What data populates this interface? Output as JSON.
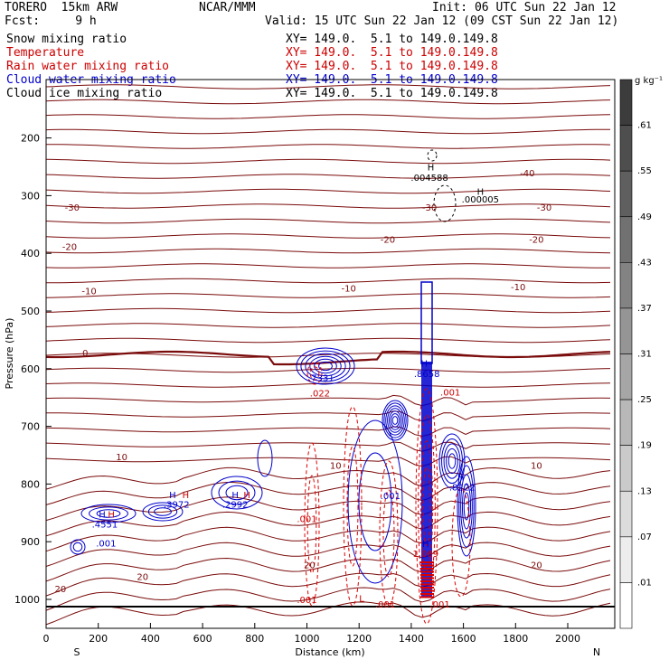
{
  "header": {
    "model": "TORERO  15km ARW",
    "center": "NCAR/MMM",
    "init": "Init: 06 UTC Sun 22 Jan 12",
    "fcst": "Fcst:     9 h",
    "valid": "Valid: 15 UTC Sun 22 Jan 12 (09 CST Sun 22 Jan 12)"
  },
  "fields": [
    {
      "name": "Snow mixing ratio",
      "color": "#000000",
      "xy": "XY= 149.0.  5.1 to 149.0.149.8"
    },
    {
      "name": "Temperature",
      "color": "#cc0000",
      "xy": "XY= 149.0.  5.1 to 149.0.149.8"
    },
    {
      "name": "Rain water mixing ratio",
      "color": "#cc0000",
      "xy": "XY= 149.0.  5.1 to 149.0.149.8"
    },
    {
      "name": "Cloud water mixing ratio",
      "color": "#0000cc",
      "xy": "XY= 149.0.  5.1 to 149.0.149.8"
    },
    {
      "name": "Cloud ice mixing ratio",
      "color": "#000000",
      "xy": "XY= 149.0.  5.1 to 149.0.149.8"
    }
  ],
  "chart_data": {
    "type": "cross-section contour",
    "xlabel": "Distance (km)",
    "ylabel": "Pressure (hPa)",
    "x_ticks": [
      0,
      200,
      400,
      600,
      800,
      1000,
      1200,
      1400,
      1600,
      1800,
      2000
    ],
    "y_ticks": [
      200,
      300,
      400,
      500,
      600,
      700,
      800,
      900,
      1000
    ],
    "xlim": [
      0,
      2180
    ],
    "ylim": [
      1050,
      100
    ],
    "left_end": "S",
    "right_end": "N",
    "colorbar": {
      "unit": "g kg⁻¹",
      "ticks": [
        ".61",
        ".55",
        ".49",
        ".43",
        ".37",
        ".31",
        ".25",
        ".19",
        ".13",
        ".07",
        ".01"
      ]
    },
    "temperature_labels": [
      {
        "text": "-40",
        "x": 1845,
        "p": 260
      },
      {
        "text": "-30",
        "x": 100,
        "p": 320
      },
      {
        "text": "-30",
        "x": 1470,
        "p": 320
      },
      {
        "text": "-30",
        "x": 1910,
        "p": 320
      },
      {
        "text": "-20",
        "x": 90,
        "p": 388
      },
      {
        "text": "-20",
        "x": 1310,
        "p": 375
      },
      {
        "text": "-20",
        "x": 1880,
        "p": 375
      },
      {
        "text": "-10",
        "x": 165,
        "p": 465
      },
      {
        "text": "-10",
        "x": 1160,
        "p": 460
      },
      {
        "text": "-10",
        "x": 1810,
        "p": 458
      },
      {
        "text": "0",
        "x": 150,
        "p": 572
      },
      {
        "text": "10",
        "x": 290,
        "p": 752
      },
      {
        "text": "10",
        "x": 1110,
        "p": 767
      },
      {
        "text": "10",
        "x": 1880,
        "p": 767
      },
      {
        "text": "20",
        "x": 370,
        "p": 960
      },
      {
        "text": "20",
        "x": 1010,
        "p": 940
      },
      {
        "text": "20",
        "x": 1880,
        "p": 940
      },
      {
        "text": "20",
        "x": 55,
        "p": 981
      }
    ],
    "extrema_labels": [
      {
        "text": "H",
        "x": 1475,
        "p": 250,
        "color": "#000000"
      },
      {
        "text": ".004588",
        "x": 1470,
        "p": 268,
        "color": "#000000"
      },
      {
        "text": "H",
        "x": 1665,
        "p": 292,
        "color": "#000000"
      },
      {
        "text": ".000005",
        "x": 1665,
        "p": 306,
        "color": "#000000"
      },
      {
        "text": ".7331",
        "x": 1055,
        "p": 615,
        "color": "#0000cc"
      },
      {
        "text": ".022",
        "x": 1050,
        "p": 642,
        "color": "#cc0000"
      },
      {
        "text": "H",
        "x": 1450,
        "p": 590,
        "color": "#0000cc"
      },
      {
        "text": ".8658",
        "x": 1460,
        "p": 608,
        "color": "#0000cc"
      },
      {
        "text": ".001",
        "x": 1550,
        "p": 640,
        "color": "#cc0000"
      },
      {
        "text": ".001",
        "x": 1320,
        "p": 820,
        "color": "#0000cc"
      },
      {
        "text": "H",
        "x": 1590,
        "p": 788,
        "color": "#0000cc"
      },
      {
        "text": ".8222",
        "x": 1595,
        "p": 805,
        "color": "#0000cc"
      },
      {
        "text": "H",
        "x": 485,
        "p": 818,
        "color": "#0000cc"
      },
      {
        "text": "H",
        "x": 535,
        "p": 818,
        "color": "#cc0000"
      },
      {
        "text": ".3972",
        "x": 500,
        "p": 835,
        "color": "#0000cc"
      },
      {
        "text": "H",
        "x": 725,
        "p": 818,
        "color": "#0000cc"
      },
      {
        "text": "H",
        "x": 770,
        "p": 818,
        "color": "#cc0000"
      },
      {
        "text": ".2992",
        "x": 725,
        "p": 835,
        "color": "#0000cc"
      },
      {
        "text": "H",
        "x": 215,
        "p": 852,
        "color": "#0000cc"
      },
      {
        "text": "H",
        "x": 250,
        "p": 852,
        "color": "#cc0000"
      },
      {
        "text": ".4551",
        "x": 225,
        "p": 869,
        "color": "#0000cc"
      },
      {
        "text": ".001",
        "x": 1000,
        "p": 860,
        "color": "#cc0000"
      },
      {
        "text": ".001",
        "x": 230,
        "p": 902,
        "color": "#0000cc"
      },
      {
        "text": "H",
        "x": 1455,
        "p": 903,
        "color": "#0000cc"
      },
      {
        "text": "1.069",
        "x": 1455,
        "p": 920,
        "color": "#cc0000"
      },
      {
        "text": ".001",
        "x": 1000,
        "p": 1000,
        "color": "#cc0000"
      },
      {
        "text": "L",
        "x": 1210,
        "p": 998,
        "color": "#cc0000"
      },
      {
        "text": ".001",
        "x": 1300,
        "p": 1008,
        "color": "#cc0000"
      },
      {
        "text": ".001",
        "x": 1510,
        "p": 1008,
        "color": "#cc0000"
      }
    ]
  }
}
